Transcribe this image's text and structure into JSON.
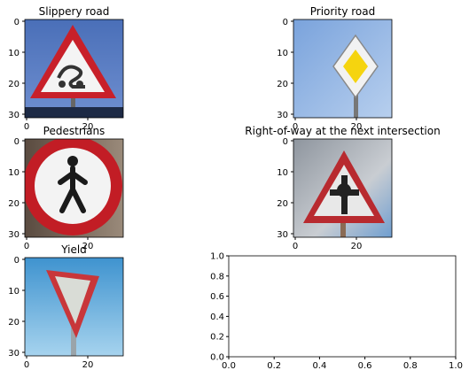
{
  "chart_data": [
    {
      "type": "image",
      "title": "Slippery road",
      "yticks": [
        "0",
        "10",
        "20",
        "30"
      ],
      "xticks": [
        "0",
        "20"
      ],
      "sign": "slippery-road",
      "colors": {
        "sky": "#4f75bd",
        "border": "#c8202a",
        "fill": "#f4f4f4",
        "symbol": "#333333"
      }
    },
    {
      "type": "image",
      "title": "Priority road",
      "yticks": [
        "0",
        "10",
        "20",
        "30"
      ],
      "xticks": [
        "0",
        "20"
      ],
      "sign": "priority-road",
      "colors": {
        "sky": "#8fb2e0",
        "border": "#f2f2f2",
        "fill": "#f5d40f",
        "symbol": "#666666"
      }
    },
    {
      "type": "image",
      "title": "Pedestrians",
      "yticks": [
        "0",
        "10",
        "20",
        "30"
      ],
      "xticks": [
        "0",
        "20"
      ],
      "sign": "pedestrians",
      "colors": {
        "sky": "#7a6b5e",
        "border": "#c21d25",
        "fill": "#f3f3f3",
        "symbol": "#1a1a1a"
      }
    },
    {
      "type": "image",
      "title": "Right-of-way at the next intersection",
      "yticks": [
        "0",
        "10",
        "20",
        "30"
      ],
      "xticks": [
        "0",
        "20"
      ],
      "sign": "right-of-way",
      "colors": {
        "sky": "#a7adb5",
        "border": "#b82a2f",
        "fill": "#e8e8e8",
        "symbol": "#222222"
      }
    },
    {
      "type": "image",
      "title": "Yield",
      "yticks": [
        "0",
        "10",
        "20",
        "30"
      ],
      "xticks": [
        "0",
        "20"
      ],
      "sign": "yield",
      "colors": {
        "sky": "#5fa8d8",
        "border": "#c8363a",
        "fill": "#d9dcd6",
        "symbol": "#d9dcd6"
      }
    },
    {
      "type": "empty-axes",
      "title": "",
      "xlim": [
        0,
        1
      ],
      "ylim": [
        0,
        1
      ],
      "xticks": [
        "0.0",
        "0.2",
        "0.4",
        "0.6",
        "0.8",
        "1.0"
      ],
      "yticks": [
        "0.0",
        "0.2",
        "0.4",
        "0.6",
        "0.8",
        "1.0"
      ]
    }
  ]
}
